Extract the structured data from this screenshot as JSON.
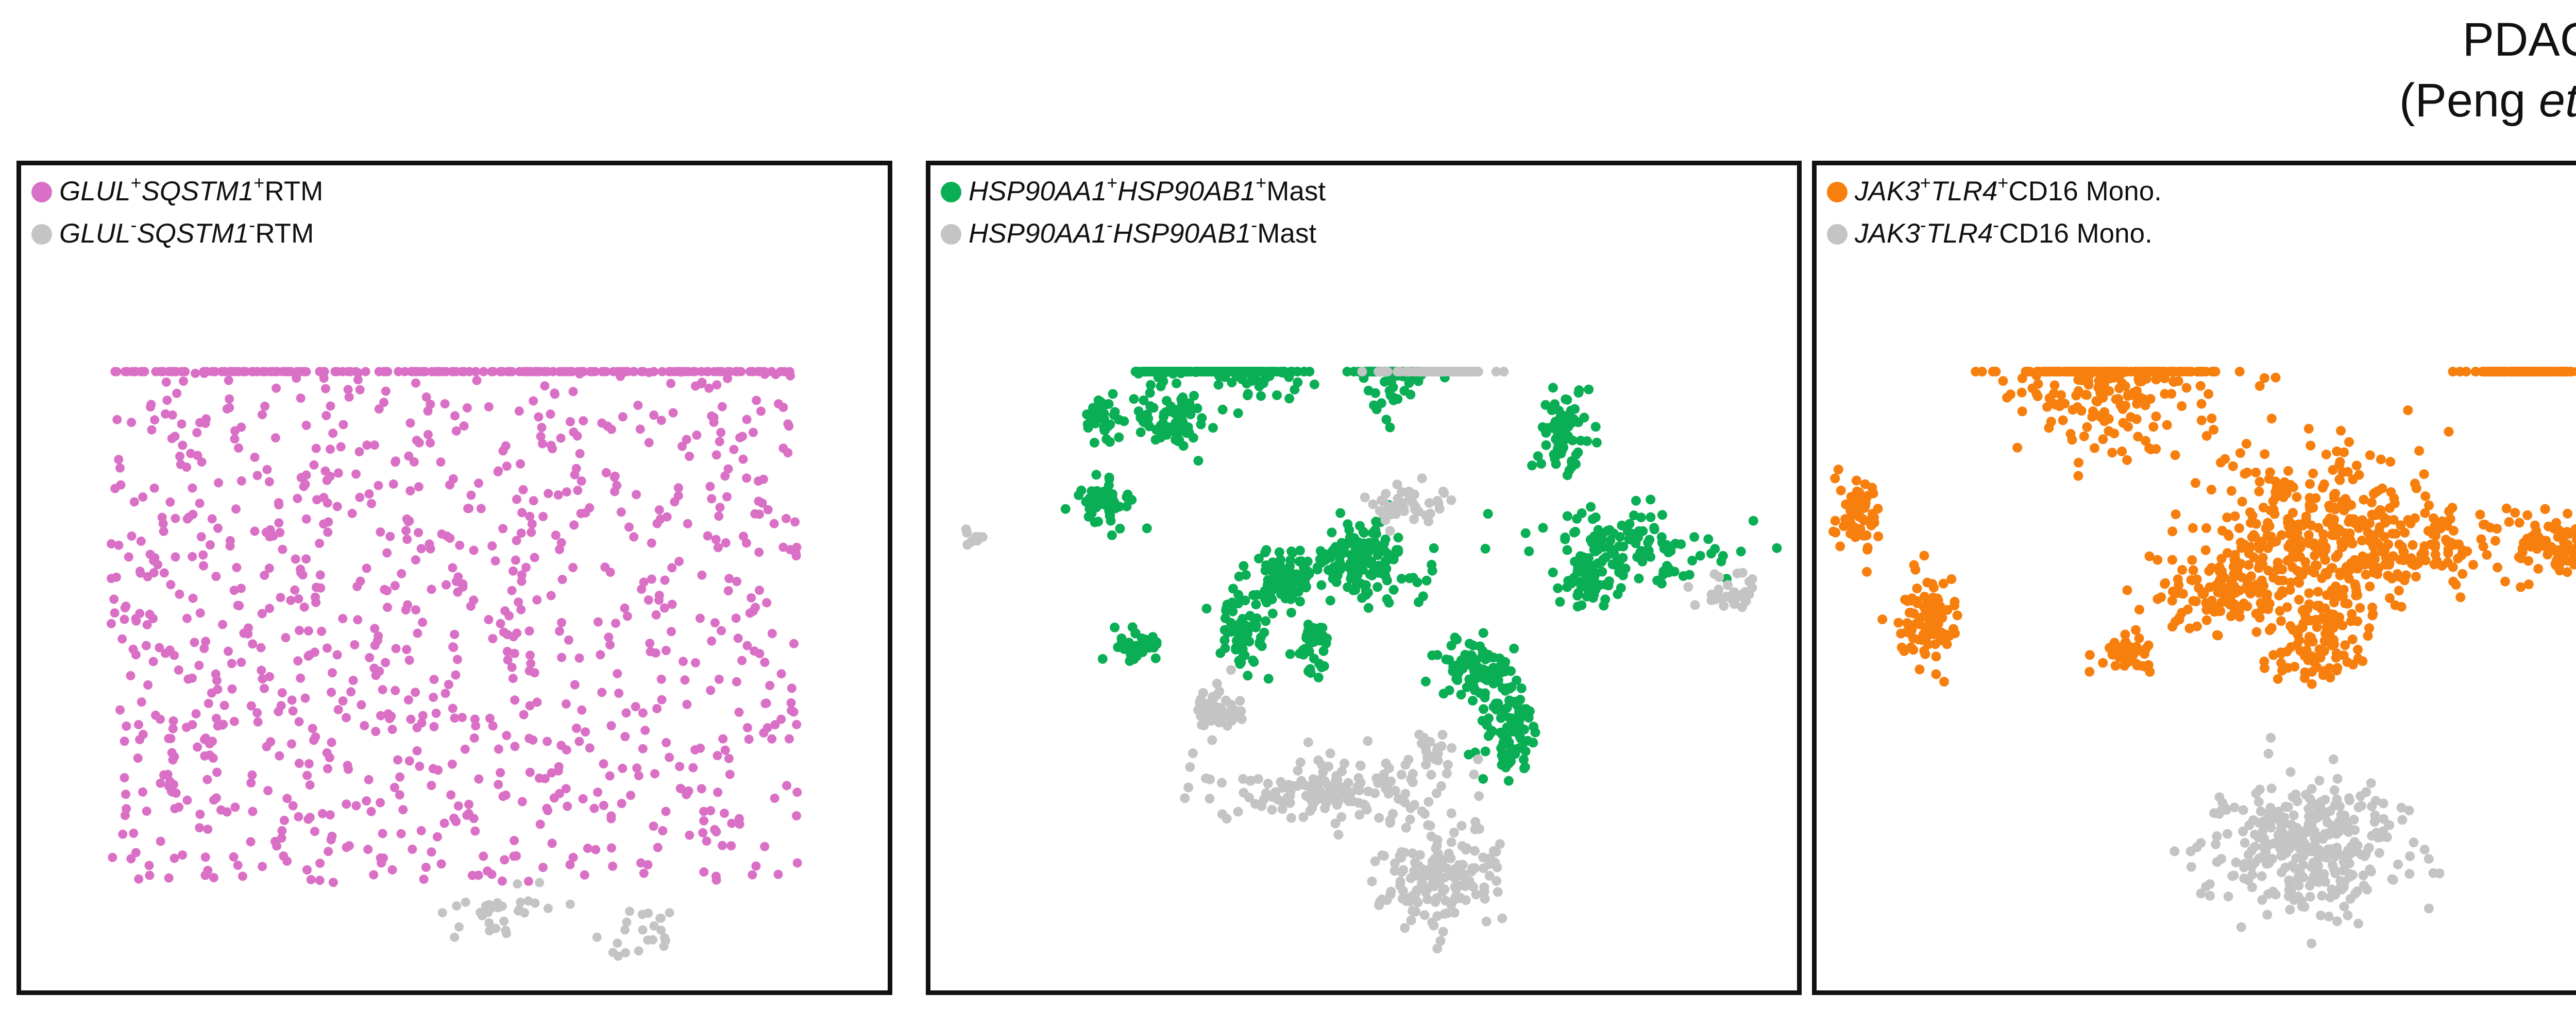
{
  "figure": {
    "title_line1": "PDAC",
    "title_line2_pre": "(Peng ",
    "title_line2_italic": "et al.",
    "title_line2_post": ")"
  },
  "chart_data": [
    {
      "type": "scatter",
      "xlabel": "",
      "ylabel": "",
      "grid": false,
      "legend_position": "top-left",
      "legend": [
        {
          "gene1": "GLUL",
          "sign1": "+",
          "gene2": "SQSTM1",
          "sign2": "+",
          "cell": "RTM",
          "color": "#DA70C6"
        },
        {
          "gene1": "GLUL",
          "sign1": "-",
          "gene2": "SQSTM1",
          "sign2": "-",
          "cell": "RTM",
          "color": "#C4C4C4"
        }
      ],
      "series": [
        {
          "color": "#DA70C6",
          "n": 1150,
          "clusters": [
            [
              0.5,
              0.48,
              0.36,
              0.34,
              1.0
            ]
          ]
        },
        {
          "color": "#C4C4C4",
          "n": 55,
          "clusters": [
            [
              0.55,
              0.91,
              0.06,
              0.03,
              0.6
            ],
            [
              0.71,
              0.93,
              0.04,
              0.03,
              0.4
            ]
          ]
        }
      ]
    },
    {
      "type": "scatter",
      "xlabel": "",
      "ylabel": "",
      "grid": false,
      "legend_position": "top-left",
      "legend": [
        {
          "gene1": "HSP90AA1",
          "sign1": "+",
          "gene2": "HSP90AB1",
          "sign2": "+",
          "cell": "Mast",
          "color": "#0AAE55"
        },
        {
          "gene1": "HSP90AA1",
          "sign1": "-",
          "gene2": "HSP90AB1",
          "sign2": "-",
          "cell": "Mast",
          "color": "#C4C4C4"
        }
      ],
      "series": [
        {
          "color": "#0AAE55",
          "n": 1350,
          "clusters": [
            [
              0.27,
              0.22,
              0.03,
              0.05,
              0.8
            ],
            [
              0.33,
              0.22,
              0.035,
              0.06,
              0.8
            ],
            [
              0.38,
              0.24,
              0.04,
              0.04,
              1
            ],
            [
              0.54,
              0.2,
              0.04,
              0.09,
              2.2
            ],
            [
              0.2,
              0.31,
              0.02,
              0.03,
              0.4
            ],
            [
              0.28,
              0.31,
              0.04,
              0.03,
              0.8
            ],
            [
              0.2,
              0.41,
              0.025,
              0.025,
              0.6
            ],
            [
              0.73,
              0.32,
              0.03,
              0.05,
              0.9
            ],
            [
              0.81,
              0.46,
              0.1,
              0.04,
              1.3
            ],
            [
              0.76,
              0.5,
              0.03,
              0.03,
              0.7
            ],
            [
              0.41,
              0.5,
              0.04,
              0.03,
              1.0
            ],
            [
              0.5,
              0.48,
              0.06,
              0.04,
              1.6
            ],
            [
              0.36,
              0.56,
              0.03,
              0.04,
              0.8
            ],
            [
              0.24,
              0.58,
              0.025,
              0.02,
              0.4
            ],
            [
              0.44,
              0.58,
              0.02,
              0.03,
              0.4
            ],
            [
              0.63,
              0.61,
              0.04,
              0.03,
              0.9
            ],
            [
              0.67,
              0.68,
              0.03,
              0.05,
              1.0
            ]
          ]
        },
        {
          "color": "#C4C4C4",
          "n": 560,
          "clusters": [
            [
              0.59,
              0.09,
              0.05,
              0.025,
              1.0
            ],
            [
              0.55,
              0.41,
              0.04,
              0.02,
              0.5
            ],
            [
              0.05,
              0.45,
              0.01,
              0.01,
              0.1
            ],
            [
              0.92,
              0.52,
              0.03,
              0.02,
              0.3
            ],
            [
              0.33,
              0.66,
              0.03,
              0.025,
              0.5
            ],
            [
              0.46,
              0.76,
              0.12,
              0.035,
              1.6
            ],
            [
              0.59,
              0.86,
              0.06,
              0.06,
              1.7
            ],
            [
              0.58,
              0.71,
              0.02,
              0.02,
              0.2
            ]
          ]
        }
      ]
    },
    {
      "type": "scatter",
      "xlabel": "",
      "ylabel": "",
      "grid": false,
      "legend_position": "top-left",
      "legend": [
        {
          "gene1": "JAK3",
          "sign1": "+",
          "gene2": "TLR4",
          "sign2": "+",
          "cell": "CD16 Mono.",
          "color": "#F77F0E"
        },
        {
          "gene1": "JAK3",
          "sign1": "-",
          "gene2": "TLR4",
          "sign2": "-",
          "cell": "CD16 Mono.",
          "color": "#C4C4C4"
        }
      ],
      "series": [
        {
          "color": "#F77F0E",
          "n": 1400,
          "clusters": [
            [
              0.35,
              0.24,
              0.11,
              0.09,
              2.6
            ],
            [
              0.6,
              0.46,
              0.12,
              0.1,
              3.4
            ],
            [
              0.84,
              0.16,
              0.05,
              0.06,
              1.2
            ],
            [
              0.73,
              0.46,
              0.07,
              0.05,
              0.7
            ],
            [
              0.05,
              0.42,
              0.025,
              0.04,
              0.6
            ],
            [
              0.13,
              0.55,
              0.03,
              0.05,
              0.8
            ],
            [
              0.89,
              0.46,
              0.05,
              0.04,
              0.8
            ],
            [
              0.37,
              0.59,
              0.025,
              0.02,
              0.5
            ],
            [
              0.6,
              0.58,
              0.05,
              0.05,
              0.7
            ],
            [
              0.48,
              0.52,
              0.07,
              0.04,
              0.9
            ]
          ]
        },
        {
          "color": "#C4C4C4",
          "n": 330,
          "clusters": [
            [
              0.58,
              0.83,
              0.1,
              0.07,
              1.0
            ]
          ]
        }
      ]
    }
  ]
}
